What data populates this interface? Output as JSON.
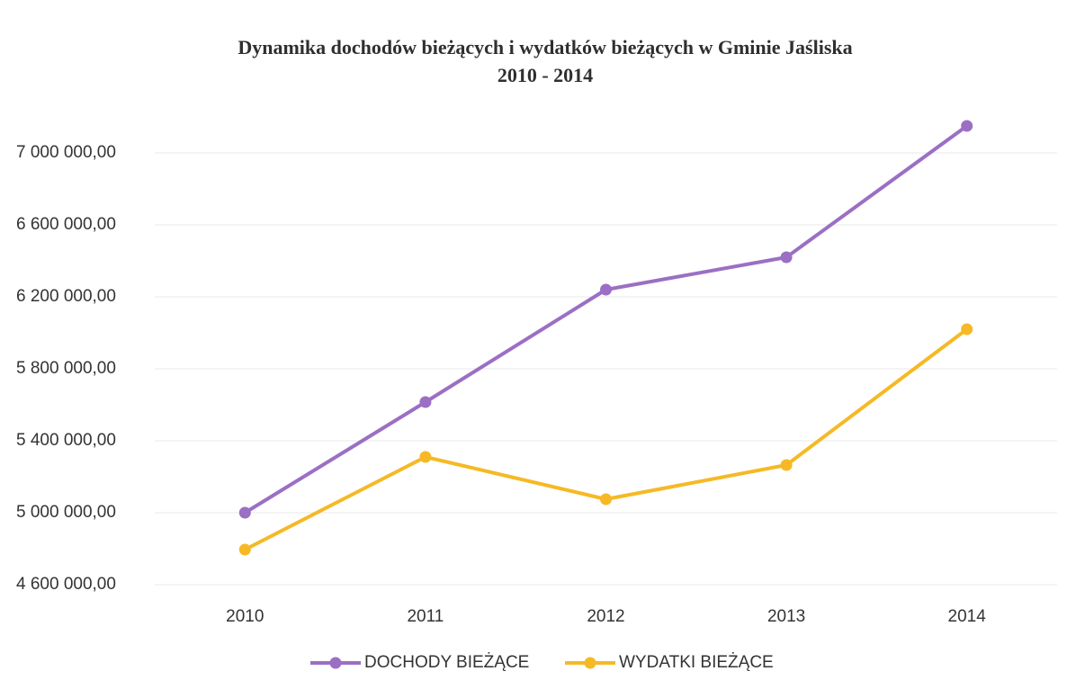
{
  "chart_data": {
    "type": "line",
    "title": "Dynamika dochodów bieżących i wydatków bieżących w Gminie Jaśliska",
    "subtitle": "2010 - 2014",
    "categories": [
      "2010",
      "2011",
      "2012",
      "2013",
      "2014"
    ],
    "series": [
      {
        "name": "DOCHODY BIEŻĄCE",
        "color": "#9b6fc4",
        "values": [
          5000000,
          5615000,
          6240000,
          6420000,
          7150000
        ]
      },
      {
        "name": "WYDATKI BIEŻĄCE",
        "color": "#f6b925",
        "values": [
          4795000,
          5310000,
          5075000,
          5265000,
          6020000
        ]
      }
    ],
    "ylim": [
      4600000,
      7200000
    ],
    "yticks": [
      {
        "value": 4600000,
        "label": "4 600 000,00"
      },
      {
        "value": 5000000,
        "label": "5 000 000,00"
      },
      {
        "value": 5400000,
        "label": "5 400 000,00"
      },
      {
        "value": 5800000,
        "label": "5 800 000,00"
      },
      {
        "value": 6200000,
        "label": "6 200 000,00"
      },
      {
        "value": 6600000,
        "label": "6 600 000,00"
      },
      {
        "value": 7000000,
        "label": "7 000 000,00"
      }
    ],
    "grid": true,
    "legend": "bottom"
  }
}
